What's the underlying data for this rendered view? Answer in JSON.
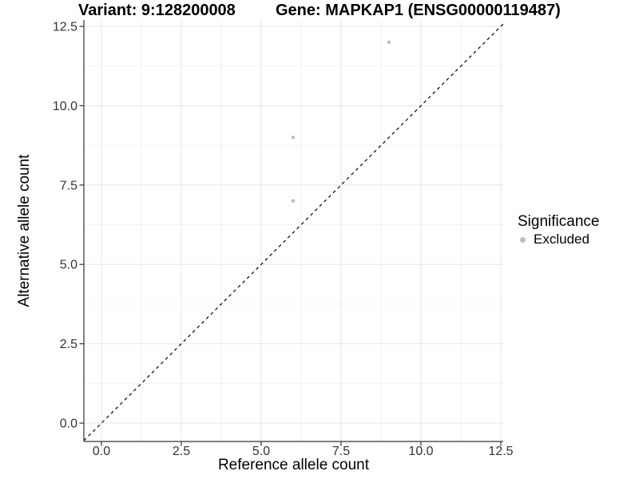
{
  "chart_data": {
    "type": "scatter",
    "titles": {
      "left": "Variant: 9:128200008",
      "right": "Gene: MAPKAP1 (ENSG00000119487)"
    },
    "xlabel": "Reference allele count",
    "ylabel": "Alternative allele count",
    "xlim": [
      0,
      12.5
    ],
    "ylim": [
      0,
      12.5
    ],
    "xticks": {
      "values": [
        0,
        2.5,
        5,
        7.5,
        10,
        12.5
      ],
      "labels": [
        "0.0",
        "2.5",
        "5.0",
        "7.5",
        "10.0",
        "12.5"
      ]
    },
    "yticks": {
      "values": [
        0,
        2.5,
        5,
        7.5,
        10,
        12.5
      ],
      "labels": [
        "0.0",
        "2.5",
        "5.0",
        "7.5",
        "10.0",
        "12.5"
      ]
    },
    "minor_ticks": [
      1.25,
      3.75,
      6.25,
      8.75,
      11.25
    ],
    "grid": {
      "major": true,
      "minor": true
    },
    "reference_line": {
      "slope": 1,
      "intercept": 0,
      "style": "dashed",
      "color": "#000000"
    },
    "series": [
      {
        "name": "Excluded",
        "color": "#bebebe",
        "points": [
          [
            6,
            7
          ],
          [
            6,
            9
          ],
          [
            9,
            12
          ]
        ]
      }
    ],
    "legend": {
      "title": "Significance",
      "position": "right",
      "items": [
        {
          "label": "Excluded",
          "color": "#bebebe"
        }
      ]
    },
    "colors": {
      "grid_major": "#e6e6e6",
      "grid_minor": "#f1f1f1",
      "axis": "#333333",
      "tick_label": "#333333",
      "background": "#ffffff"
    }
  }
}
